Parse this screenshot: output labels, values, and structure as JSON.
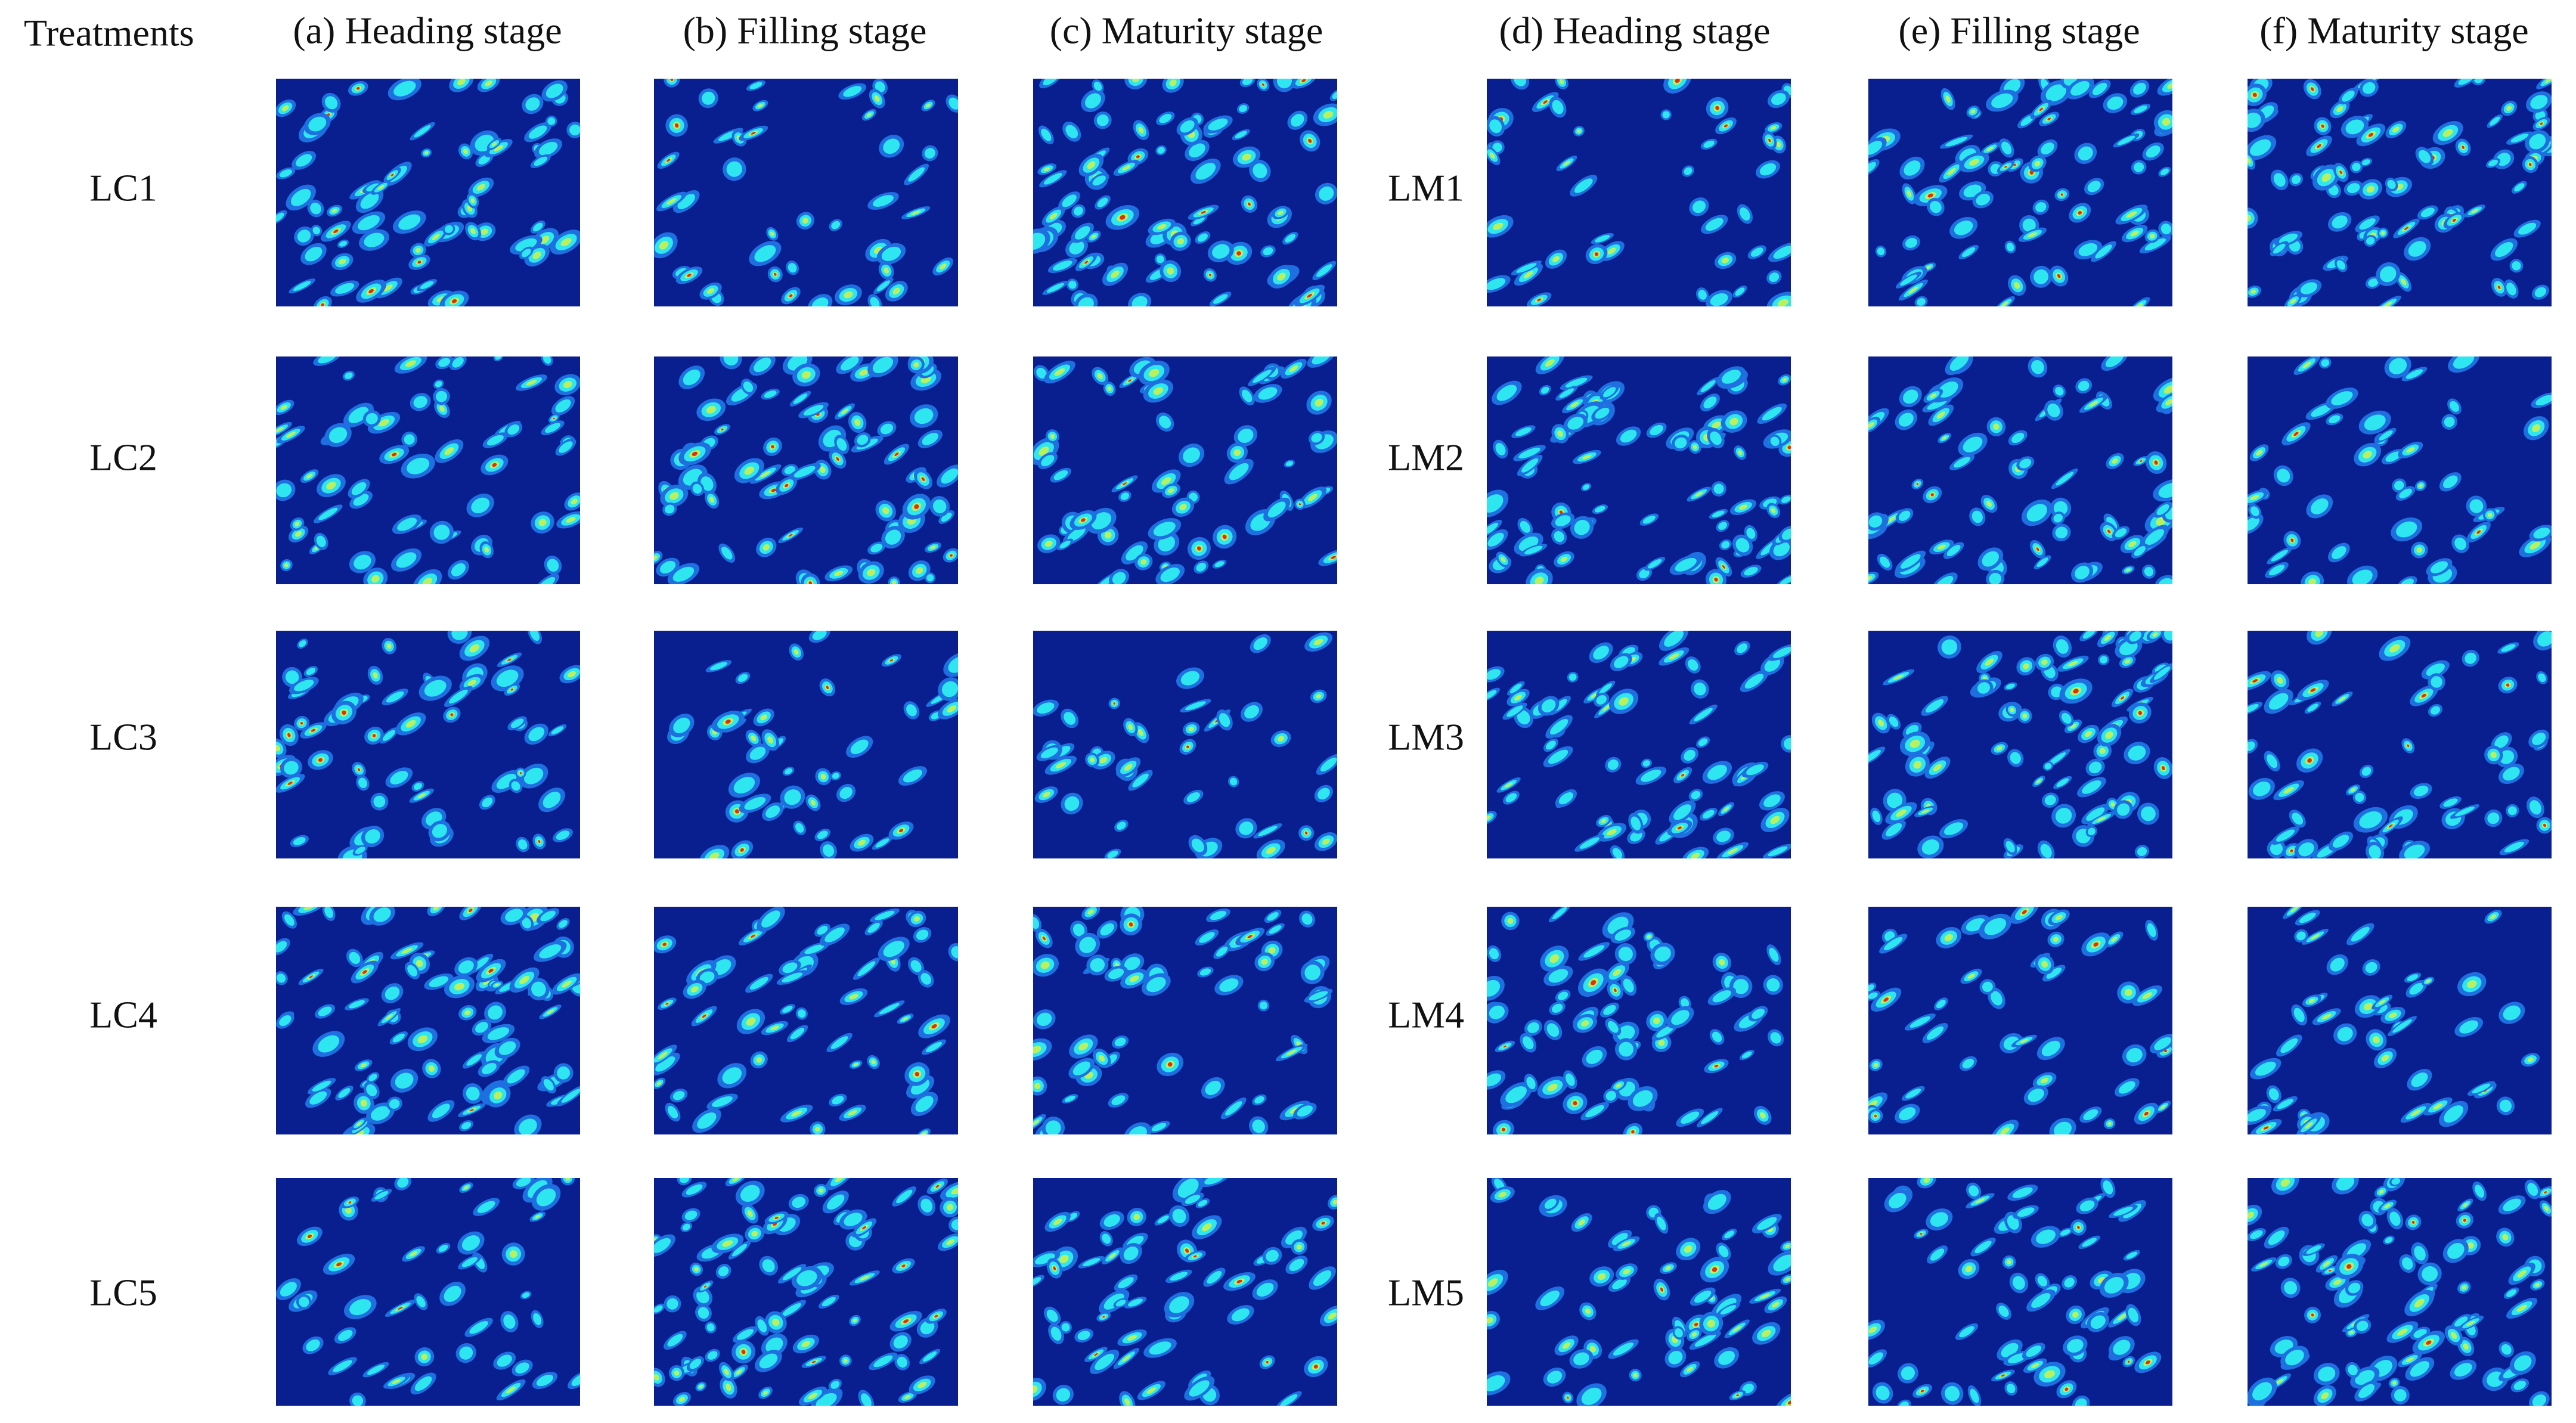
{
  "header": {
    "title": "Treatments"
  },
  "columns": [
    "(a) Heading stage",
    "(b) Filling stage",
    "(c) Maturity stage",
    "(d) Heading stage",
    "(e) Filling stage",
    "(f) Maturity stage"
  ],
  "rows_left": [
    "LC1",
    "LC2",
    "LC3",
    "LC4",
    "LC5"
  ],
  "rows_right": [
    "LM1",
    "LM2",
    "LM3",
    "LM4",
    "LM5"
  ]
}
